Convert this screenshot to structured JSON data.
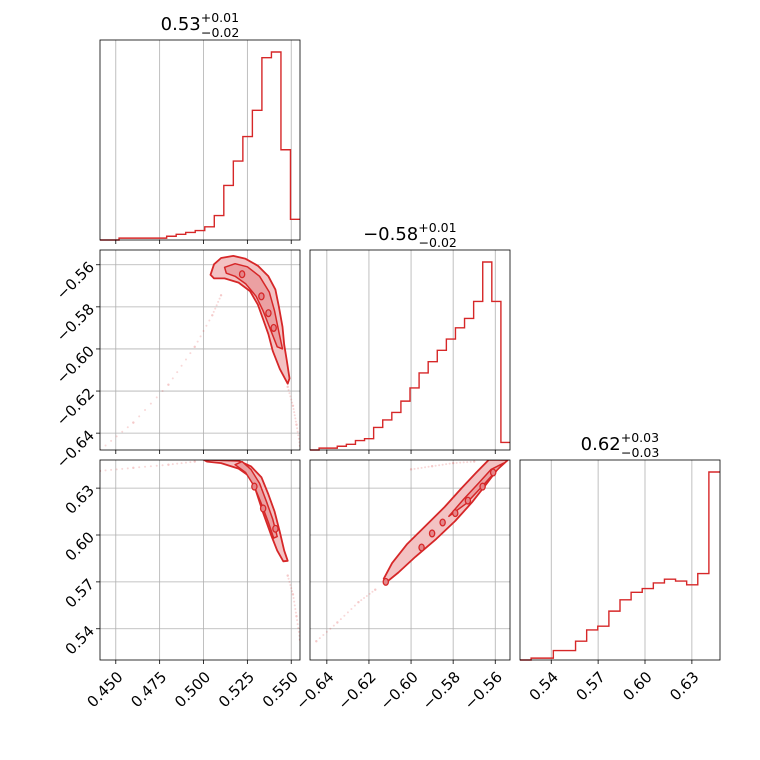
{
  "chart_data": {
    "type": "corner",
    "color": "#d62728",
    "fill_color": "#f3c2c3",
    "grid": true,
    "params": [
      {
        "id": "p1",
        "title": {
          "value": "0.53",
          "plus": "+0.01",
          "minus": "−0.02"
        },
        "range": [
          0.441,
          0.555
        ],
        "ticks": [
          0.45,
          0.475,
          0.5,
          0.525,
          0.55
        ],
        "tick_labels": [
          "0.450",
          "0.475",
          "0.500",
          "0.525",
          "0.550"
        ],
        "hist_counts": [
          0.0,
          0.0,
          0.01,
          0.01,
          0.01,
          0.01,
          0.01,
          0.02,
          0.03,
          0.04,
          0.05,
          0.07,
          0.13,
          0.29,
          0.42,
          0.55,
          0.69,
          0.97,
          1.0,
          0.48,
          0.11
        ]
      },
      {
        "id": "p2",
        "title": {
          "value": "−0.58",
          "plus": "+0.01",
          "minus": "−0.02"
        },
        "range": [
          -0.648,
          -0.553
        ],
        "ticks": [
          -0.64,
          -0.62,
          -0.6,
          -0.58,
          -0.56
        ],
        "tick_labels": [
          "−0.64",
          "−0.62",
          "−0.60",
          "−0.58",
          "−0.56"
        ],
        "hist_counts": [
          0.0,
          0.01,
          0.01,
          0.02,
          0.03,
          0.05,
          0.06,
          0.12,
          0.16,
          0.2,
          0.26,
          0.33,
          0.41,
          0.47,
          0.53,
          0.59,
          0.65,
          0.7,
          0.79,
          1.0,
          0.79,
          0.04
        ]
      },
      {
        "id": "p3",
        "title": {
          "value": "0.62",
          "plus": "+0.03",
          "minus": "−0.03"
        },
        "range": [
          0.52,
          0.648
        ],
        "ticks": [
          0.54,
          0.57,
          0.6,
          0.63
        ],
        "tick_labels": [
          "0.54",
          "0.57",
          "0.60",
          "0.63"
        ],
        "hist_counts": [
          0.0,
          0.01,
          0.01,
          0.05,
          0.05,
          0.1,
          0.16,
          0.18,
          0.26,
          0.32,
          0.36,
          0.38,
          0.41,
          0.43,
          0.42,
          0.4,
          0.46,
          1.0
        ]
      }
    ],
    "pairs": [
      {
        "x": "p1",
        "y": "p2",
        "contour_outer": [
          [
            0.504,
            -0.5648
          ],
          [
            0.506,
            -0.5598
          ],
          [
            0.51,
            -0.5568
          ],
          [
            0.517,
            -0.5558
          ],
          [
            0.524,
            -0.5572
          ],
          [
            0.531,
            -0.5605
          ],
          [
            0.537,
            -0.5655
          ],
          [
            0.541,
            -0.5718
          ],
          [
            0.543,
            -0.58
          ],
          [
            0.545,
            -0.5895
          ],
          [
            0.546,
            -0.598
          ],
          [
            0.5475,
            -0.6055
          ],
          [
            0.549,
            -0.614
          ],
          [
            0.548,
            -0.6165
          ],
          [
            0.5435,
            -0.6095
          ],
          [
            0.5395,
            -0.601
          ],
          [
            0.537,
            -0.593
          ],
          [
            0.534,
            -0.586
          ],
          [
            0.531,
            -0.579
          ],
          [
            0.5265,
            -0.5725
          ],
          [
            0.52,
            -0.5685
          ],
          [
            0.512,
            -0.5665
          ],
          [
            0.506,
            -0.5665
          ]
        ],
        "contour_inner": [
          [
            0.512,
            -0.5612
          ],
          [
            0.518,
            -0.5595
          ],
          [
            0.525,
            -0.561
          ],
          [
            0.532,
            -0.5655
          ],
          [
            0.5375,
            -0.573
          ],
          [
            0.5405,
            -0.582
          ],
          [
            0.543,
            -0.592
          ],
          [
            0.545,
            -0.6
          ],
          [
            0.542,
            -0.599
          ],
          [
            0.538,
            -0.5905
          ],
          [
            0.534,
            -0.582
          ],
          [
            0.53,
            -0.575
          ],
          [
            0.524,
            -0.569
          ],
          [
            0.518,
            -0.5655
          ],
          [
            0.513,
            -0.564
          ]
        ],
        "blobs": [
          [
            0.522,
            -0.5645
          ],
          [
            0.533,
            -0.575
          ],
          [
            0.537,
            -0.583
          ],
          [
            0.54,
            -0.59
          ]
        ],
        "tail": [
          [
            0.441,
            -0.648
          ],
          [
            0.46,
            -0.635
          ],
          [
            0.48,
            -0.617
          ],
          [
            0.495,
            -0.599
          ],
          [
            0.505,
            -0.584
          ],
          [
            0.51,
            -0.5745
          ],
          [
            0.548,
            -0.618
          ],
          [
            0.551,
            -0.627
          ],
          [
            0.553,
            -0.636
          ],
          [
            0.555,
            -0.646
          ]
        ]
      },
      {
        "x": "p1",
        "y": "p3",
        "contour_outer": [
          [
            0.5,
            0.6482
          ],
          [
            0.52,
            0.6475
          ],
          [
            0.527,
            0.644
          ],
          [
            0.533,
            0.637
          ],
          [
            0.537,
            0.626
          ],
          [
            0.5405,
            0.615
          ],
          [
            0.5435,
            0.602
          ],
          [
            0.546,
            0.59
          ],
          [
            0.548,
            0.5835
          ],
          [
            0.5455,
            0.5832
          ],
          [
            0.542,
            0.59
          ],
          [
            0.5385,
            0.6
          ],
          [
            0.534,
            0.614
          ],
          [
            0.53,
            0.628
          ],
          [
            0.527,
            0.637
          ],
          [
            0.52,
            0.6425
          ],
          [
            0.51,
            0.646
          ],
          [
            0.502,
            0.647
          ]
        ],
        "contour_inner": [
          [
            0.522,
            0.647
          ],
          [
            0.527,
            0.642
          ],
          [
            0.532,
            0.633
          ],
          [
            0.536,
            0.621
          ],
          [
            0.5395,
            0.61
          ],
          [
            0.542,
            0.599
          ],
          [
            0.54,
            0.598
          ],
          [
            0.537,
            0.608
          ],
          [
            0.533,
            0.62
          ],
          [
            0.529,
            0.631
          ],
          [
            0.524,
            0.64
          ],
          [
            0.518,
            0.645
          ]
        ],
        "blobs": [
          [
            0.529,
            0.631
          ],
          [
            0.534,
            0.617
          ],
          [
            0.541,
            0.604
          ]
        ],
        "tail": [
          [
            0.441,
            0.641
          ],
          [
            0.46,
            0.643
          ],
          [
            0.48,
            0.645
          ],
          [
            0.495,
            0.647
          ],
          [
            0.548,
            0.574
          ],
          [
            0.551,
            0.562
          ],
          [
            0.553,
            0.548
          ],
          [
            0.555,
            0.533
          ]
        ]
      },
      {
        "x": "p2",
        "y": "p3",
        "contour_outer": [
          [
            -0.6115,
            0.57
          ],
          [
            -0.606,
            0.576
          ],
          [
            -0.598,
            0.586
          ],
          [
            -0.588,
            0.5975
          ],
          [
            -0.579,
            0.609
          ],
          [
            -0.571,
            0.621
          ],
          [
            -0.564,
            0.633
          ],
          [
            -0.559,
            0.642
          ],
          [
            -0.554,
            0.648
          ],
          [
            -0.563,
            0.6482
          ],
          [
            -0.569,
            0.64
          ],
          [
            -0.576,
            0.63
          ],
          [
            -0.584,
            0.618
          ],
          [
            -0.593,
            0.606
          ],
          [
            -0.602,
            0.594
          ],
          [
            -0.609,
            0.582
          ],
          [
            -0.613,
            0.572
          ]
        ],
        "contour_inner": [
          [
            -0.582,
            0.612
          ],
          [
            -0.574,
            0.62
          ],
          [
            -0.567,
            0.63
          ],
          [
            -0.561,
            0.639
          ],
          [
            -0.556,
            0.646
          ],
          [
            -0.562,
            0.642
          ],
          [
            -0.568,
            0.633
          ],
          [
            -0.575,
            0.623
          ]
        ],
        "blobs": [
          [
            -0.612,
            0.57
          ],
          [
            -0.595,
            0.592
          ],
          [
            -0.59,
            0.601
          ],
          [
            -0.585,
            0.608
          ],
          [
            -0.579,
            0.614
          ],
          [
            -0.573,
            0.622
          ],
          [
            -0.566,
            0.631
          ],
          [
            -0.561,
            0.64
          ]
        ],
        "tail": [
          [
            -0.645,
            0.532
          ],
          [
            -0.635,
            0.544
          ],
          [
            -0.625,
            0.557
          ],
          [
            -0.617,
            0.565
          ],
          [
            -0.6,
            0.642
          ],
          [
            -0.59,
            0.644
          ],
          [
            -0.58,
            0.646
          ],
          [
            -0.57,
            0.647
          ]
        ]
      }
    ]
  }
}
